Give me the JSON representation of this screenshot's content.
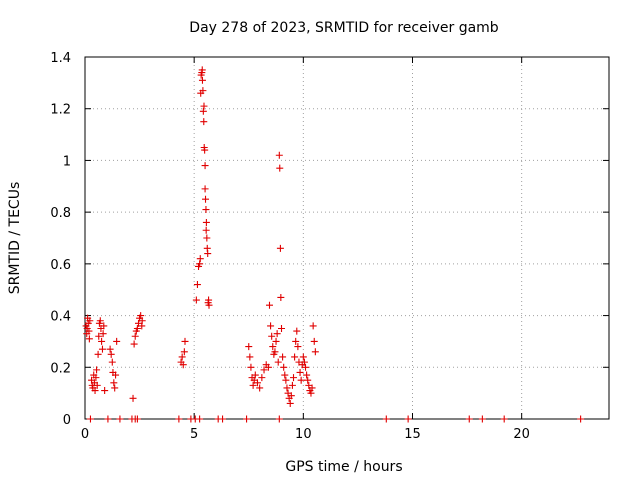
{
  "chart_data": {
    "type": "scatter",
    "title": "Day 278 of 2023, SRMTID for receiver gamb",
    "xlabel": "GPS time / hours",
    "ylabel": "SRMTID / TECUs",
    "xlim": [
      0,
      24
    ],
    "ylim": [
      0,
      1.4
    ],
    "xticks": [
      0,
      5,
      10,
      15,
      20
    ],
    "yticks": [
      0,
      0.2,
      0.4,
      0.6,
      0.8,
      1,
      1.2,
      1.4
    ],
    "xtick_labels": [
      "0",
      "5",
      "10",
      "15",
      "20"
    ],
    "ytick_labels": [
      "0",
      "0.2",
      "0.4",
      "0.6",
      "0.8",
      "1",
      "1.2",
      "1.4"
    ],
    "grid": true,
    "marker": "+",
    "color": "#e00000",
    "grid_color": "#a0a0a0",
    "axis_color": "#000000",
    "series": [
      {
        "name": "SRMTID",
        "points": [
          [
            0.05,
            0.36
          ],
          [
            0.08,
            0.33
          ],
          [
            0.1,
            0.35
          ],
          [
            0.12,
            0.39
          ],
          [
            0.15,
            0.37
          ],
          [
            0.18,
            0.34
          ],
          [
            0.2,
            0.31
          ],
          [
            0.22,
            0.38
          ],
          [
            0.3,
            0.15
          ],
          [
            0.33,
            0.13
          ],
          [
            0.36,
            0.12
          ],
          [
            0.4,
            0.17
          ],
          [
            0.43,
            0.14
          ],
          [
            0.46,
            0.11
          ],
          [
            0.5,
            0.16
          ],
          [
            0.53,
            0.19
          ],
          [
            0.56,
            0.13
          ],
          [
            0.6,
            0.25
          ],
          [
            0.63,
            0.32
          ],
          [
            0.66,
            0.37
          ],
          [
            0.7,
            0.38
          ],
          [
            0.73,
            0.35
          ],
          [
            0.76,
            0.3
          ],
          [
            0.8,
            0.27
          ],
          [
            0.83,
            0.33
          ],
          [
            0.86,
            0.36
          ],
          [
            0.9,
            0.11
          ],
          [
            1.15,
            0.27
          ],
          [
            1.2,
            0.25
          ],
          [
            1.25,
            0.22
          ],
          [
            1.28,
            0.18
          ],
          [
            1.32,
            0.14
          ],
          [
            1.36,
            0.12
          ],
          [
            1.4,
            0.17
          ],
          [
            1.45,
            0.3
          ],
          [
            2.2,
            0.08
          ],
          [
            2.25,
            0.29
          ],
          [
            2.3,
            0.32
          ],
          [
            2.35,
            0.34
          ],
          [
            2.4,
            0.35
          ],
          [
            2.45,
            0.37
          ],
          [
            2.5,
            0.39
          ],
          [
            2.55,
            0.4
          ],
          [
            2.6,
            0.36
          ],
          [
            2.62,
            0.38
          ],
          [
            4.4,
            0.22
          ],
          [
            4.45,
            0.24
          ],
          [
            4.5,
            0.21
          ],
          [
            4.55,
            0.26
          ],
          [
            4.58,
            0.3
          ],
          [
            5.1,
            0.46
          ],
          [
            5.15,
            0.52
          ],
          [
            5.2,
            0.59
          ],
          [
            5.25,
            0.6
          ],
          [
            5.28,
            0.62
          ],
          [
            5.3,
            1.26
          ],
          [
            5.32,
            1.33
          ],
          [
            5.35,
            1.34
          ],
          [
            5.37,
            1.35
          ],
          [
            5.4,
            1.27
          ],
          [
            5.42,
            1.19
          ],
          [
            5.44,
            1.15
          ],
          [
            5.46,
            1.05
          ],
          [
            5.48,
            1.04
          ],
          [
            5.5,
            0.89
          ],
          [
            5.52,
            0.85
          ],
          [
            5.54,
            0.81
          ],
          [
            5.56,
            0.76
          ],
          [
            5.58,
            0.7
          ],
          [
            5.6,
            0.66
          ],
          [
            5.62,
            0.64
          ],
          [
            5.64,
            0.45
          ],
          [
            5.66,
            0.46
          ],
          [
            5.68,
            0.44
          ],
          [
            5.5,
            0.98
          ],
          [
            5.45,
            1.21
          ],
          [
            5.38,
            1.31
          ],
          [
            5.55,
            0.73
          ],
          [
            7.5,
            0.28
          ],
          [
            7.55,
            0.24
          ],
          [
            7.6,
            0.2
          ],
          [
            7.65,
            0.16
          ],
          [
            7.7,
            0.13
          ],
          [
            7.75,
            0.15
          ],
          [
            7.8,
            0.17
          ],
          [
            7.9,
            0.14
          ],
          [
            8.0,
            0.12
          ],
          [
            8.1,
            0.16
          ],
          [
            8.2,
            0.19
          ],
          [
            8.3,
            0.21
          ],
          [
            8.4,
            0.2
          ],
          [
            8.45,
            0.44
          ],
          [
            8.5,
            0.36
          ],
          [
            8.55,
            0.32
          ],
          [
            8.6,
            0.28
          ],
          [
            8.65,
            0.25
          ],
          [
            8.7,
            0.26
          ],
          [
            8.75,
            0.3
          ],
          [
            8.8,
            0.33
          ],
          [
            8.85,
            0.22
          ],
          [
            8.9,
            1.02
          ],
          [
            8.92,
            0.97
          ],
          [
            8.95,
            0.66
          ],
          [
            8.97,
            0.47
          ],
          [
            9.0,
            0.35
          ],
          [
            9.05,
            0.24
          ],
          [
            9.1,
            0.2
          ],
          [
            9.15,
            0.17
          ],
          [
            9.2,
            0.15
          ],
          [
            9.25,
            0.12
          ],
          [
            9.3,
            0.1
          ],
          [
            9.35,
            0.08
          ],
          [
            9.4,
            0.06
          ],
          [
            9.45,
            0.09
          ],
          [
            9.5,
            0.13
          ],
          [
            9.55,
            0.16
          ],
          [
            9.6,
            0.24
          ],
          [
            9.65,
            0.3
          ],
          [
            9.7,
            0.34
          ],
          [
            9.75,
            0.28
          ],
          [
            9.8,
            0.22
          ],
          [
            9.85,
            0.18
          ],
          [
            9.9,
            0.15
          ],
          [
            9.95,
            0.21
          ],
          [
            10.0,
            0.24
          ],
          [
            10.05,
            0.22
          ],
          [
            10.1,
            0.2
          ],
          [
            10.15,
            0.17
          ],
          [
            10.2,
            0.15
          ],
          [
            10.25,
            0.13
          ],
          [
            10.3,
            0.11
          ],
          [
            10.35,
            0.1
          ],
          [
            10.4,
            0.12
          ],
          [
            10.45,
            0.36
          ],
          [
            10.5,
            0.3
          ],
          [
            10.55,
            0.26
          ],
          [
            0.25,
            0.0
          ],
          [
            1.05,
            0.0
          ],
          [
            1.6,
            0.0
          ],
          [
            2.15,
            0.0
          ],
          [
            2.3,
            0.0
          ],
          [
            2.4,
            0.0
          ],
          [
            4.3,
            0.0
          ],
          [
            4.85,
            0.0
          ],
          [
            5.05,
            0.0
          ],
          [
            5.25,
            0.0
          ],
          [
            6.1,
            0.0
          ],
          [
            6.3,
            0.0
          ],
          [
            7.4,
            0.0
          ],
          [
            8.9,
            0.0
          ],
          [
            13.8,
            0.0
          ],
          [
            14.8,
            0.0
          ],
          [
            17.6,
            0.0
          ],
          [
            18.2,
            0.0
          ],
          [
            19.2,
            0.0
          ],
          [
            22.7,
            0.0
          ]
        ]
      }
    ]
  }
}
